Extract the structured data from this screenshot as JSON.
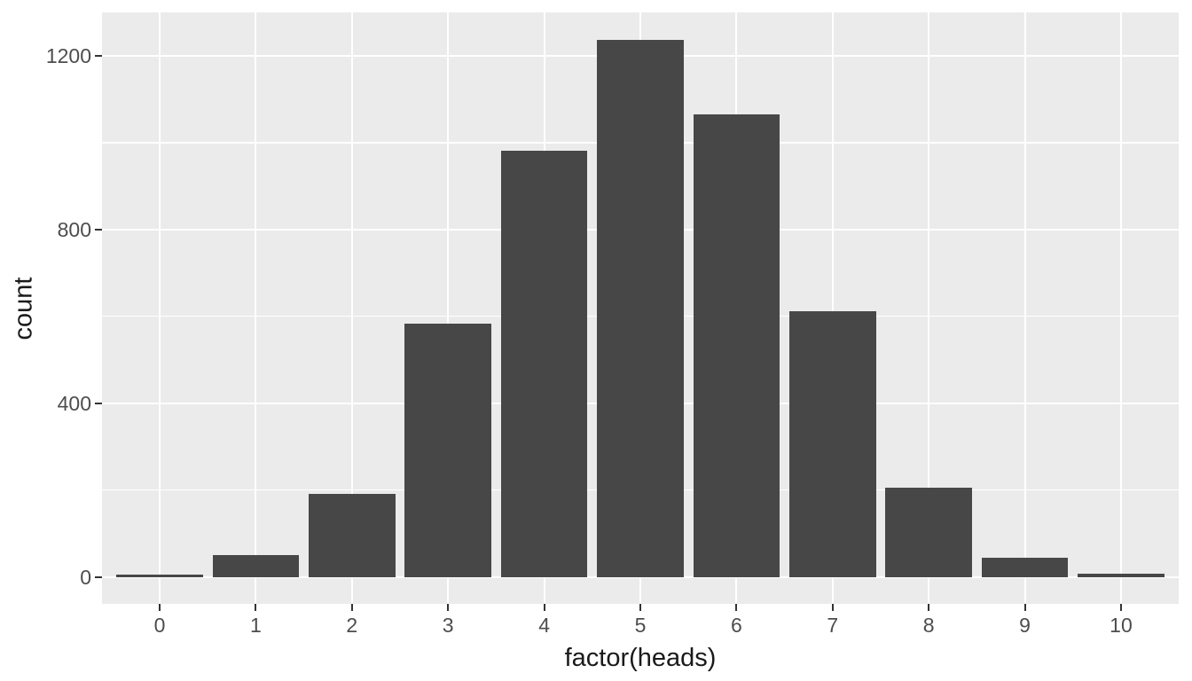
{
  "figure": {
    "background": "#FFFFFF",
    "panel_background": "#EBEBEB",
    "grid_color": "#FFFFFF",
    "bar_fill": "#474747",
    "tick_mark_color": "#333333",
    "tick_label_color": "#4D4D4D",
    "axis_title_color": "#1A1A1A"
  },
  "chart_data": {
    "type": "bar",
    "title": "",
    "xlabel": "factor(heads)",
    "ylabel": "count",
    "categories": [
      "0",
      "1",
      "2",
      "3",
      "4",
      "5",
      "6",
      "7",
      "8",
      "9",
      "10"
    ],
    "values": [
      5,
      51,
      192,
      584,
      982,
      1237,
      1065,
      612,
      205,
      45,
      8
    ],
    "y_ticks": [
      0,
      400,
      800,
      1200
    ],
    "y_minor_ticks": [
      200,
      600,
      1000
    ],
    "ylim": [
      -62,
      1300
    ],
    "bar_width_fraction": 0.9,
    "grid": true,
    "legend": "none",
    "style": "ggplot2 theme_grey"
  }
}
